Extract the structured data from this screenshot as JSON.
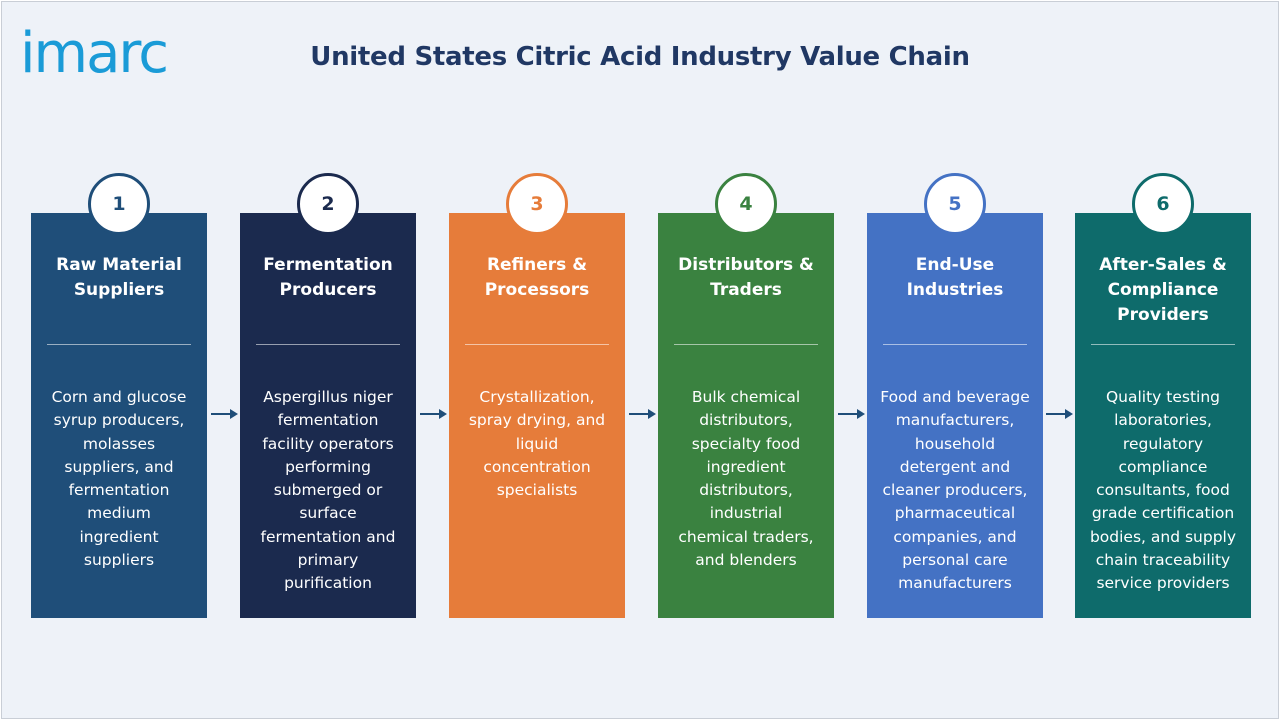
{
  "logo": {
    "text": "imarc"
  },
  "title": "United States Citric Acid Industry Value Chain",
  "colors": {
    "title": "#203864",
    "logo": "#1a9bd7",
    "arrow": "#1f4e79",
    "background": "#eef2f8"
  },
  "stages": [
    {
      "number": "1",
      "title": "Raw Material\nSuppliers",
      "description": "Corn and glucose\nsyrup producers,\nmolasses\nsuppliers, and\nfermentation\nmedium\ningredient\nsuppliers",
      "color": "#1f4e79",
      "badge_color": "#1f4e79"
    },
    {
      "number": "2",
      "title": "Fermentation\nProducers",
      "description": "Aspergillus niger\nfermentation\nfacility operators\nperforming\nsubmerged or\nsurface\nfermentation and\nprimary\npurification",
      "color": "#1b2a4e",
      "badge_color": "#1b2a4e"
    },
    {
      "number": "3",
      "title": "Refiners &\nProcessors",
      "description": "Crystallization,\nspray drying, and\nliquid\nconcentration\nspecialists",
      "color": "#e67c3a",
      "badge_color": "#e67c3a"
    },
    {
      "number": "4",
      "title": "Distributors &\nTraders",
      "description": "Bulk chemical\ndistributors,\nspecialty food\ningredient\ndistributors,\nindustrial\nchemical traders,\nand blenders",
      "color": "#3a8240",
      "badge_color": "#3a8240"
    },
    {
      "number": "5",
      "title": "End-Use\nIndustries",
      "description": "Food and beverage\nmanufacturers,\nhousehold\ndetergent and\ncleaner producers,\npharmaceutical\ncompanies, and\npersonal care\nmanufacturers",
      "color": "#4472c4",
      "badge_color": "#4472c4"
    },
    {
      "number": "6",
      "title": "After-Sales &\nCompliance\nProviders",
      "description": "Quality testing\nlaboratories,\nregulatory\ncompliance\nconsultants, food\ngrade certification\nbodies, and supply\nchain traceability\nservice providers",
      "color": "#0e6b6b",
      "badge_color": "#0e6b6b"
    }
  ]
}
